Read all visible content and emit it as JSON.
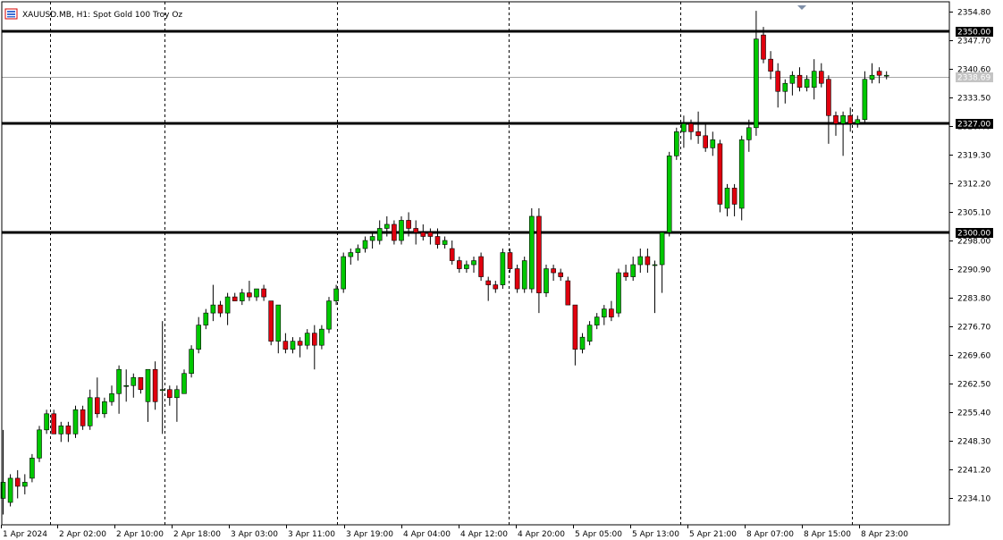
{
  "window": {
    "symbol": "XAUUSD.MB",
    "timeframe": "H1",
    "description": "Spot Gold 100 Troy Oz",
    "title": "XAUUSD.MB, H1:  Spot Gold 100 Troy Oz"
  },
  "colors": {
    "bull": "#00c800",
    "bear": "#e0000e",
    "wick": "#000000",
    "level_line": "#000000",
    "bid_line": "#a6a6a6",
    "bid_label_bg": "#c4c4c4",
    "icon_frame": "#d40000",
    "icon_fill": "#3b6fd4"
  },
  "chart_data": {
    "type": "candlestick",
    "ylim": [
      2227.0,
      2357.0
    ],
    "y_ticks": [
      "2354.80",
      "2347.70",
      "2340.60",
      "2333.50",
      "2326.40",
      "2319.30",
      "2312.20",
      "2305.10",
      "2298.00",
      "2290.90",
      "2283.80",
      "2276.70",
      "2269.60",
      "2262.50",
      "2255.40",
      "2248.30",
      "2241.20",
      "2234.10"
    ],
    "x_labels": [
      "1 Apr 2024",
      "2 Apr 02:00",
      "2 Apr 10:00",
      "2 Apr 18:00",
      "3 Apr 03:00",
      "3 Apr 11:00",
      "3 Apr 19:00",
      "4 Apr 04:00",
      "4 Apr 12:00",
      "4 Apr 20:00",
      "5 Apr 05:00",
      "5 Apr 13:00",
      "5 Apr 21:00",
      "8 Apr 07:00",
      "8 Apr 15:00",
      "8 Apr 23:00"
    ],
    "day_separators_after_label": [
      "2 Apr 02:00",
      "2 Apr 18:00",
      "3 Apr 19:00",
      "4 Apr 20:00",
      "5 Apr 21:00",
      "8 Apr 23:00"
    ],
    "horizontal_levels": [
      {
        "value": 2350.0,
        "label": "2350.00"
      },
      {
        "value": 2327.0,
        "label": "2327.00"
      },
      {
        "value": 2300.0,
        "label": "2300.00"
      }
    ],
    "bid": {
      "value": 2338.69,
      "label": "2338.69"
    },
    "candles": [
      {
        "o": 2234,
        "h": 2251,
        "l": 2230,
        "c": 2238
      },
      {
        "o": 2233,
        "h": 2240,
        "l": 2232,
        "c": 2239
      },
      {
        "o": 2239,
        "h": 2241,
        "l": 2234,
        "c": 2237
      },
      {
        "o": 2237,
        "h": 2240,
        "l": 2235,
        "c": 2238
      },
      {
        "o": 2239,
        "h": 2245,
        "l": 2238,
        "c": 2244
      },
      {
        "o": 2244,
        "h": 2252,
        "l": 2243,
        "c": 2251
      },
      {
        "o": 2251,
        "h": 2256,
        "l": 2250,
        "c": 2255
      },
      {
        "o": 2255,
        "h": 2256,
        "l": 2250,
        "c": 2250
      },
      {
        "o": 2250,
        "h": 2253,
        "l": 2248,
        "c": 2252
      },
      {
        "o": 2252,
        "h": 2253,
        "l": 2248,
        "c": 2250
      },
      {
        "o": 2250,
        "h": 2257,
        "l": 2249,
        "c": 2256
      },
      {
        "o": 2256,
        "h": 2257,
        "l": 2251,
        "c": 2252
      },
      {
        "o": 2252,
        "h": 2261,
        "l": 2251,
        "c": 2259
      },
      {
        "o": 2259,
        "h": 2264,
        "l": 2254,
        "c": 2255
      },
      {
        "o": 2255,
        "h": 2259,
        "l": 2254,
        "c": 2258
      },
      {
        "o": 2258,
        "h": 2262,
        "l": 2257,
        "c": 2260
      },
      {
        "o": 2260,
        "h": 2267,
        "l": 2255,
        "c": 2266
      },
      {
        "o": 2262,
        "h": 2266,
        "l": 2258,
        "c": 2262
      },
      {
        "o": 2262,
        "h": 2265,
        "l": 2259,
        "c": 2264
      },
      {
        "o": 2264,
        "h": 2264,
        "l": 2260,
        "c": 2261
      },
      {
        "o": 2258,
        "h": 2266,
        "l": 2253,
        "c": 2266
      },
      {
        "o": 2266,
        "h": 2268,
        "l": 2256,
        "c": 2258
      },
      {
        "o": 2261,
        "h": 2278,
        "l": 2250,
        "c": 2261
      },
      {
        "o": 2261,
        "h": 2262,
        "l": 2257,
        "c": 2259
      },
      {
        "o": 2259,
        "h": 2262,
        "l": 2253,
        "c": 2261
      },
      {
        "o": 2260,
        "h": 2266,
        "l": 2260,
        "c": 2265
      },
      {
        "o": 2265,
        "h": 2272,
        "l": 2264,
        "c": 2271
      },
      {
        "o": 2271,
        "h": 2279,
        "l": 2270,
        "c": 2277
      },
      {
        "o": 2277,
        "h": 2281,
        "l": 2276,
        "c": 2280
      },
      {
        "o": 2280,
        "h": 2287,
        "l": 2278,
        "c": 2282
      },
      {
        "o": 2282,
        "h": 2283,
        "l": 2279,
        "c": 2280
      },
      {
        "o": 2280,
        "h": 2285,
        "l": 2277,
        "c": 2284
      },
      {
        "o": 2284,
        "h": 2285,
        "l": 2283,
        "c": 2283
      },
      {
        "o": 2283,
        "h": 2286,
        "l": 2282,
        "c": 2285
      },
      {
        "o": 2285,
        "h": 2288,
        "l": 2283,
        "c": 2284
      },
      {
        "o": 2284,
        "h": 2286,
        "l": 2283,
        "c": 2286
      },
      {
        "o": 2286,
        "h": 2287,
        "l": 2283,
        "c": 2284
      },
      {
        "o": 2283,
        "h": 2283,
        "l": 2272,
        "c": 2273
      },
      {
        "o": 2273,
        "h": 2282,
        "l": 2270,
        "c": 2282
      },
      {
        "o": 2273,
        "h": 2275,
        "l": 2270,
        "c": 2271
      },
      {
        "o": 2271,
        "h": 2274,
        "l": 2270,
        "c": 2273
      },
      {
        "o": 2273,
        "h": 2274,
        "l": 2269,
        "c": 2272
      },
      {
        "o": 2272,
        "h": 2276,
        "l": 2271,
        "c": 2275
      },
      {
        "o": 2275,
        "h": 2277,
        "l": 2266,
        "c": 2272
      },
      {
        "o": 2272,
        "h": 2277,
        "l": 2271,
        "c": 2276
      },
      {
        "o": 2276,
        "h": 2284,
        "l": 2275,
        "c": 2283
      },
      {
        "o": 2283,
        "h": 2287,
        "l": 2282,
        "c": 2286
      },
      {
        "o": 2286,
        "h": 2295,
        "l": 2285,
        "c": 2294
      },
      {
        "o": 2294,
        "h": 2296,
        "l": 2292,
        "c": 2295
      },
      {
        "o": 2295,
        "h": 2297,
        "l": 2293,
        "c": 2296
      },
      {
        "o": 2296,
        "h": 2299,
        "l": 2295,
        "c": 2298
      },
      {
        "o": 2298,
        "h": 2300,
        "l": 2296,
        "c": 2299
      },
      {
        "o": 2298,
        "h": 2303,
        "l": 2297,
        "c": 2301
      },
      {
        "o": 2301,
        "h": 2304,
        "l": 2299,
        "c": 2302
      },
      {
        "o": 2302,
        "h": 2303,
        "l": 2297,
        "c": 2298
      },
      {
        "o": 2298,
        "h": 2304,
        "l": 2297,
        "c": 2303
      },
      {
        "o": 2303,
        "h": 2305,
        "l": 2299,
        "c": 2301
      },
      {
        "o": 2301,
        "h": 2303,
        "l": 2297,
        "c": 2300
      },
      {
        "o": 2300,
        "h": 2302,
        "l": 2298,
        "c": 2299
      },
      {
        "o": 2300,
        "h": 2301,
        "l": 2297,
        "c": 2299
      },
      {
        "o": 2299,
        "h": 2301,
        "l": 2296,
        "c": 2297
      },
      {
        "o": 2297,
        "h": 2299,
        "l": 2296,
        "c": 2298
      },
      {
        "o": 2296,
        "h": 2298,
        "l": 2292,
        "c": 2293
      },
      {
        "o": 2293,
        "h": 2294,
        "l": 2290,
        "c": 2291
      },
      {
        "o": 2291,
        "h": 2293,
        "l": 2290,
        "c": 2292
      },
      {
        "o": 2292,
        "h": 2294,
        "l": 2290,
        "c": 2293
      },
      {
        "o": 2294,
        "h": 2295,
        "l": 2288,
        "c": 2289
      },
      {
        "o": 2288,
        "h": 2289,
        "l": 2283,
        "c": 2287
      },
      {
        "o": 2287,
        "h": 2288,
        "l": 2285,
        "c": 2286
      },
      {
        "o": 2287,
        "h": 2296,
        "l": 2286,
        "c": 2295
      },
      {
        "o": 2295,
        "h": 2296,
        "l": 2290,
        "c": 2291
      },
      {
        "o": 2291,
        "h": 2292,
        "l": 2285,
        "c": 2286
      },
      {
        "o": 2286,
        "h": 2294,
        "l": 2285,
        "c": 2293
      },
      {
        "o": 2286,
        "h": 2306,
        "l": 2285,
        "c": 2304
      },
      {
        "o": 2304,
        "h": 2306,
        "l": 2280,
        "c": 2285
      },
      {
        "o": 2285,
        "h": 2292,
        "l": 2284,
        "c": 2291
      },
      {
        "o": 2291,
        "h": 2292,
        "l": 2288,
        "c": 2290
      },
      {
        "o": 2290,
        "h": 2291,
        "l": 2288,
        "c": 2289
      },
      {
        "o": 2288,
        "h": 2289,
        "l": 2282,
        "c": 2282
      },
      {
        "o": 2282,
        "h": 2282,
        "l": 2267,
        "c": 2271
      },
      {
        "o": 2271,
        "h": 2275,
        "l": 2270,
        "c": 2274
      },
      {
        "o": 2273,
        "h": 2278,
        "l": 2272,
        "c": 2277
      },
      {
        "o": 2277,
        "h": 2280,
        "l": 2276,
        "c": 2279
      },
      {
        "o": 2279,
        "h": 2282,
        "l": 2277,
        "c": 2281
      },
      {
        "o": 2281,
        "h": 2283,
        "l": 2278,
        "c": 2279
      },
      {
        "o": 2280,
        "h": 2291,
        "l": 2279,
        "c": 2290
      },
      {
        "o": 2290,
        "h": 2292,
        "l": 2288,
        "c": 2289
      },
      {
        "o": 2289,
        "h": 2294,
        "l": 2288,
        "c": 2292
      },
      {
        "o": 2292,
        "h": 2296,
        "l": 2290,
        "c": 2294
      },
      {
        "o": 2294,
        "h": 2296,
        "l": 2290,
        "c": 2292
      },
      {
        "o": 2292,
        "h": 2293,
        "l": 2280,
        "c": 2292
      },
      {
        "o": 2292,
        "h": 2300,
        "l": 2285,
        "c": 2300
      },
      {
        "o": 2300,
        "h": 2320,
        "l": 2299,
        "c": 2319
      },
      {
        "o": 2319,
        "h": 2326,
        "l": 2318,
        "c": 2325
      },
      {
        "o": 2325,
        "h": 2329,
        "l": 2321,
        "c": 2327
      },
      {
        "o": 2327,
        "h": 2328,
        "l": 2323,
        "c": 2325
      },
      {
        "o": 2325,
        "h": 2330,
        "l": 2322,
        "c": 2324
      },
      {
        "o": 2324,
        "h": 2327,
        "l": 2320,
        "c": 2321
      },
      {
        "o": 2321,
        "h": 2325,
        "l": 2319,
        "c": 2323
      },
      {
        "o": 2322,
        "h": 2323,
        "l": 2305,
        "c": 2307
      },
      {
        "o": 2306,
        "h": 2312,
        "l": 2304,
        "c": 2311
      },
      {
        "o": 2311,
        "h": 2312,
        "l": 2304,
        "c": 2307
      },
      {
        "o": 2306,
        "h": 2324,
        "l": 2303,
        "c": 2323
      },
      {
        "o": 2323,
        "h": 2328,
        "l": 2320,
        "c": 2326
      },
      {
        "o": 2326,
        "h": 2355,
        "l": 2324,
        "c": 2348
      },
      {
        "o": 2349,
        "h": 2351,
        "l": 2342,
        "c": 2343
      },
      {
        "o": 2343,
        "h": 2345,
        "l": 2338,
        "c": 2340
      },
      {
        "o": 2340,
        "h": 2342,
        "l": 2331,
        "c": 2335
      },
      {
        "o": 2335,
        "h": 2338,
        "l": 2332,
        "c": 2337
      },
      {
        "o": 2337,
        "h": 2340,
        "l": 2334,
        "c": 2339
      },
      {
        "o": 2339,
        "h": 2341,
        "l": 2335,
        "c": 2336
      },
      {
        "o": 2336,
        "h": 2339,
        "l": 2335,
        "c": 2338
      },
      {
        "o": 2336,
        "h": 2343,
        "l": 2333,
        "c": 2340
      },
      {
        "o": 2340,
        "h": 2342,
        "l": 2336,
        "c": 2337
      },
      {
        "o": 2338,
        "h": 2339,
        "l": 2322,
        "c": 2329
      },
      {
        "o": 2329,
        "h": 2330,
        "l": 2324,
        "c": 2327
      },
      {
        "o": 2327,
        "h": 2330,
        "l": 2319,
        "c": 2329
      },
      {
        "o": 2329,
        "h": 2331,
        "l": 2325,
        "c": 2327
      },
      {
        "o": 2327,
        "h": 2329,
        "l": 2326,
        "c": 2328
      },
      {
        "o": 2328,
        "h": 2340,
        "l": 2327,
        "c": 2338
      },
      {
        "o": 2338,
        "h": 2342,
        "l": 2337,
        "c": 2339
      },
      {
        "o": 2340,
        "h": 2341,
        "l": 2337,
        "c": 2339
      },
      {
        "o": 2339,
        "h": 2340,
        "l": 2338,
        "c": 2339
      }
    ]
  }
}
